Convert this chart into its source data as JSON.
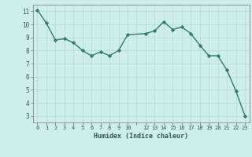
{
  "x": [
    0,
    1,
    2,
    3,
    4,
    5,
    6,
    7,
    8,
    9,
    10,
    12,
    13,
    14,
    15,
    16,
    17,
    18,
    19,
    20,
    21,
    22,
    23
  ],
  "y": [
    11.1,
    10.1,
    8.8,
    8.9,
    8.6,
    8.0,
    7.6,
    7.9,
    7.6,
    8.0,
    9.2,
    9.3,
    9.5,
    10.2,
    9.6,
    9.8,
    9.3,
    8.4,
    7.6,
    7.6,
    6.5,
    4.9,
    3.0
  ],
  "line_color": "#2d7d6e",
  "marker": "D",
  "marker_size": 2.2,
  "bg_color": "#ceeee9",
  "grid_color": "#b8ddd8",
  "xlabel": "Humidex (Indice chaleur)",
  "ylim": [
    2.5,
    11.5
  ],
  "xlim": [
    -0.5,
    23.5
  ],
  "yticks": [
    3,
    4,
    5,
    6,
    7,
    8,
    9,
    10,
    11
  ],
  "xtick_labels": [
    "0",
    "1",
    "2",
    "3",
    "4",
    "5",
    "6",
    "7",
    "8",
    "9",
    "10",
    "",
    "12",
    "13",
    "14",
    "15",
    "16",
    "17",
    "18",
    "19",
    "20",
    "21",
    "22",
    "23"
  ],
  "xticks": [
    0,
    1,
    2,
    3,
    4,
    5,
    6,
    7,
    8,
    9,
    10,
    11,
    12,
    13,
    14,
    15,
    16,
    17,
    18,
    19,
    20,
    21,
    22,
    23
  ]
}
